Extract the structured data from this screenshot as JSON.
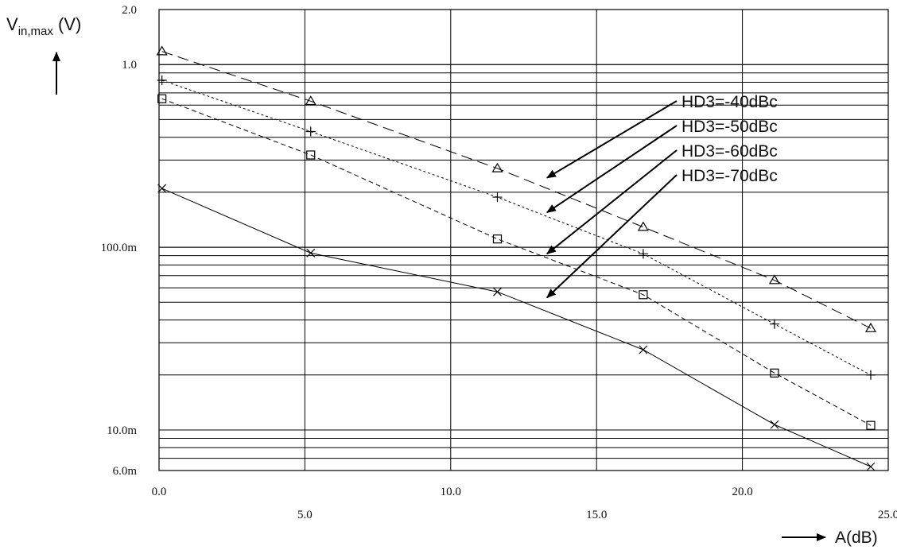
{
  "chart_data": {
    "type": "line",
    "title": "",
    "xlabel": "A(dB)",
    "ylabel": {
      "main": "V",
      "sub": "in,max",
      "unit": " (V)"
    },
    "x_scale": "linear",
    "y_scale": "log",
    "xlim": [
      0,
      25
    ],
    "ylim": [
      0.006,
      2.0
    ],
    "grid": true,
    "x_ticks": [
      {
        "value": 0,
        "label": "0.0"
      },
      {
        "value": 5,
        "label": "5.0"
      },
      {
        "value": 10,
        "label": "10.0"
      },
      {
        "value": 15,
        "label": "15.0"
      },
      {
        "value": 20,
        "label": "20.0"
      },
      {
        "value": 25,
        "label": "25.0"
      }
    ],
    "y_ticks": [
      {
        "value": 2.0,
        "label": "2.0"
      },
      {
        "value": 1.0,
        "label": "1.0"
      },
      {
        "value": 0.1,
        "label": "100.0m"
      },
      {
        "value": 0.01,
        "label": "10.0m"
      },
      {
        "value": 0.006,
        "label": "6.0m"
      }
    ],
    "series": [
      {
        "marker": "triangle",
        "dash": "14,7",
        "x": [
          0.1,
          5.2,
          11.6,
          16.6,
          21.1,
          24.4
        ],
        "y": [
          1.18,
          0.63,
          0.27,
          0.129,
          0.066,
          0.036
        ]
      },
      {
        "marker": "plus",
        "dash": "3,3",
        "x": [
          0.1,
          5.2,
          11.6,
          16.6,
          21.1,
          24.4
        ],
        "y": [
          0.82,
          0.43,
          0.188,
          0.092,
          0.038,
          0.02
        ]
      },
      {
        "marker": "square",
        "dash": "6,4",
        "x": [
          0.1,
          5.2,
          11.6,
          16.6,
          21.1,
          24.4
        ],
        "y": [
          0.65,
          0.32,
          0.111,
          0.055,
          0.0205,
          0.0106
        ]
      },
      {
        "marker": "x",
        "dash": "",
        "x": [
          0.1,
          5.2,
          11.6,
          16.6,
          21.1,
          24.4
        ],
        "y": [
          0.21,
          0.093,
          0.057,
          0.0275,
          0.0107,
          0.0063
        ]
      }
    ],
    "annotations": [
      {
        "text": "HD3=-40dBc",
        "target_x": 13.3,
        "target_y": 0.24
      },
      {
        "text": "HD3=-50dBc",
        "target_x": 13.3,
        "target_y": 0.155
      },
      {
        "text": "HD3=-60dBc",
        "target_x": 13.3,
        "target_y": 0.092
      },
      {
        "text": "HD3=-70dBc",
        "target_x": 13.3,
        "target_y": 0.053
      }
    ]
  }
}
